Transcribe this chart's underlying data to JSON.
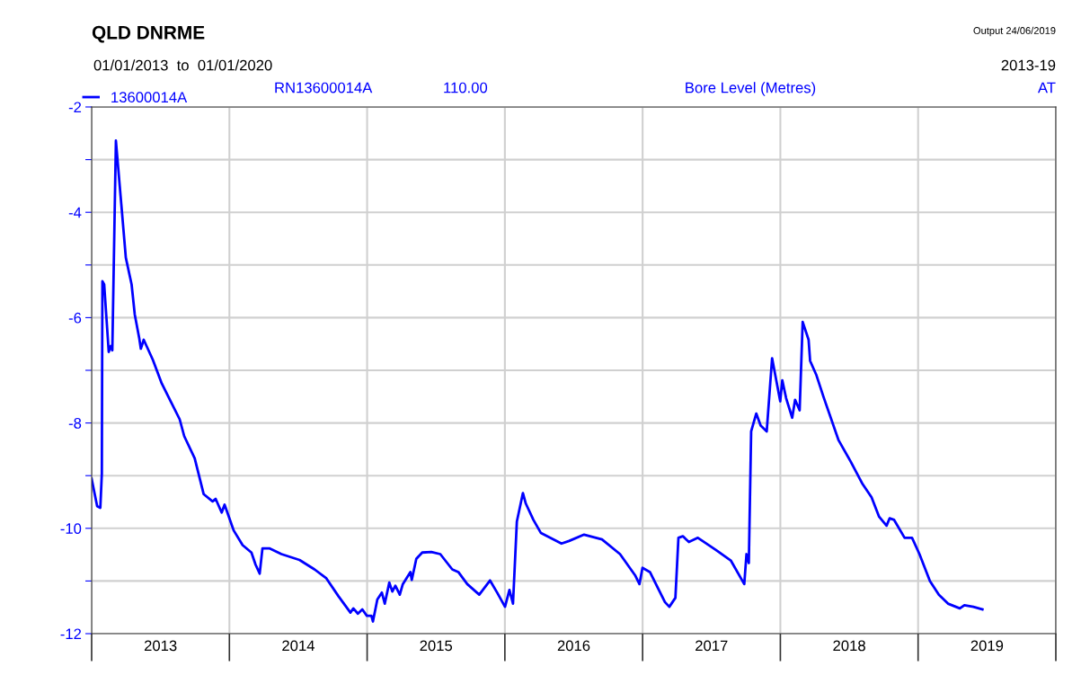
{
  "chart_data": {
    "type": "line",
    "title": "QLD DNRME",
    "subtitle": "01/01/2013  to  01/01/2020",
    "ylabel": "Bore Level (Metres)",
    "annotations": [
      "Output 24/06/2019",
      "2013-19",
      "RN13600014A",
      "110.00",
      "AT"
    ],
    "xlim": [
      2013,
      2020
    ],
    "xticks": [
      {
        "value": 2013,
        "label": null
      },
      {
        "value": 2013.5,
        "label": "2013"
      },
      {
        "value": 2014,
        "label": null
      },
      {
        "value": 2014.5,
        "label": "2014"
      },
      {
        "value": 2015,
        "label": null
      },
      {
        "value": 2015.5,
        "label": "2015"
      },
      {
        "value": 2016,
        "label": null
      },
      {
        "value": 2016.5,
        "label": "2016"
      },
      {
        "value": 2017,
        "label": null
      },
      {
        "value": 2017.5,
        "label": "2017"
      },
      {
        "value": 2018,
        "label": null
      },
      {
        "value": 2018.5,
        "label": "2018"
      },
      {
        "value": 2019,
        "label": null
      },
      {
        "value": 2019.5,
        "label": "2019"
      },
      {
        "value": 2020,
        "label": null
      }
    ],
    "ylim": [
      -12,
      -2
    ],
    "yticks": [
      -12,
      {
        "value": -11,
        "label": null
      },
      -10,
      {
        "value": -9,
        "label": null
      },
      -8,
      {
        "value": -7,
        "label": null
      },
      -6,
      {
        "value": -5,
        "label": null
      },
      -4,
      {
        "value": -3,
        "label": null
      },
      -2
    ],
    "grid": true,
    "legend": "top left",
    "marker": "none",
    "line_style": "solid",
    "series": [
      {
        "name": "13600014A",
        "color": "#0000ff",
        "x": [
          2013.0,
          2013.04,
          2013.063,
          2013.074,
          2013.078,
          2013.091,
          2013.124,
          2013.139,
          2013.15,
          2013.176,
          2013.215,
          2013.248,
          2013.29,
          2013.313,
          2013.346,
          2013.357,
          2013.378,
          2013.444,
          2013.509,
          2013.574,
          2013.639,
          2013.672,
          2013.748,
          2013.813,
          2013.878,
          2013.9,
          2013.944,
          2013.965,
          2014.031,
          2014.096,
          2014.16,
          2014.19,
          2014.22,
          2014.24,
          2014.29,
          2014.378,
          2014.509,
          2014.618,
          2014.704,
          2014.792,
          2014.879,
          2014.9,
          2014.933,
          2014.965,
          2014.998,
          2015.031,
          2015.042,
          2015.074,
          2015.107,
          2015.128,
          2015.161,
          2015.183,
          2015.205,
          2015.237,
          2015.259,
          2015.314,
          2015.324,
          2015.357,
          2015.4,
          2015.466,
          2015.531,
          2015.618,
          2015.662,
          2015.727,
          2015.814,
          2015.892,
          2015.946,
          2016.001,
          2016.033,
          2016.059,
          2016.087,
          2016.131,
          2016.152,
          2016.207,
          2016.262,
          2016.411,
          2016.466,
          2016.575,
          2016.705,
          2016.836,
          2016.945,
          2016.977,
          2016.999,
          2017.053,
          2017.118,
          2017.162,
          2017.194,
          2017.238,
          2017.26,
          2017.292,
          2017.336,
          2017.401,
          2017.532,
          2017.64,
          2017.738,
          2017.754,
          2017.771,
          2017.788,
          2017.825,
          2017.857,
          2017.901,
          2017.94,
          2017.999,
          2018.014,
          2018.042,
          2018.086,
          2018.107,
          2018.14,
          2018.162,
          2018.205,
          2018.216,
          2018.26,
          2018.314,
          2018.423,
          2018.51,
          2018.597,
          2018.662,
          2018.717,
          2018.771,
          2018.793,
          2018.826,
          2018.902,
          2018.956,
          2019.01,
          2019.086,
          2019.151,
          2019.217,
          2019.303,
          2019.336,
          2019.401,
          2019.467
        ],
        "values": [
          -9.06,
          -9.58,
          -9.61,
          -8.96,
          -5.31,
          -5.37,
          -6.65,
          -6.54,
          -6.62,
          -2.64,
          -3.84,
          -4.86,
          -5.37,
          -5.94,
          -6.4,
          -6.59,
          -6.42,
          -6.8,
          -7.25,
          -7.59,
          -7.93,
          -8.25,
          -8.67,
          -9.35,
          -9.49,
          -9.44,
          -9.7,
          -9.55,
          -10.04,
          -10.32,
          -10.46,
          -10.69,
          -10.86,
          -10.38,
          -10.38,
          -10.49,
          -10.6,
          -10.78,
          -10.95,
          -11.29,
          -11.6,
          -11.52,
          -11.62,
          -11.54,
          -11.66,
          -11.66,
          -11.77,
          -11.35,
          -11.22,
          -11.43,
          -11.03,
          -11.2,
          -11.09,
          -11.26,
          -11.06,
          -10.83,
          -10.98,
          -10.58,
          -10.46,
          -10.45,
          -10.49,
          -10.78,
          -10.83,
          -11.06,
          -11.26,
          -10.99,
          -11.23,
          -11.49,
          -11.17,
          -11.43,
          -9.87,
          -9.33,
          -9.53,
          -9.84,
          -10.09,
          -10.29,
          -10.24,
          -10.12,
          -10.21,
          -10.49,
          -10.89,
          -11.06,
          -10.75,
          -10.83,
          -11.17,
          -11.4,
          -11.49,
          -11.32,
          -10.18,
          -10.15,
          -10.26,
          -10.18,
          -10.41,
          -10.61,
          -11.06,
          -10.49,
          -10.66,
          -8.16,
          -7.82,
          -8.05,
          -8.16,
          -6.77,
          -7.59,
          -7.19,
          -7.53,
          -7.9,
          -7.56,
          -7.76,
          -6.08,
          -6.42,
          -6.82,
          -7.08,
          -7.51,
          -8.33,
          -8.73,
          -9.16,
          -9.41,
          -9.78,
          -9.95,
          -9.81,
          -9.84,
          -10.18,
          -10.18,
          -10.49,
          -11.0,
          -11.26,
          -11.43,
          -11.52,
          -11.46,
          -11.49,
          -11.54
        ]
      }
    ]
  }
}
